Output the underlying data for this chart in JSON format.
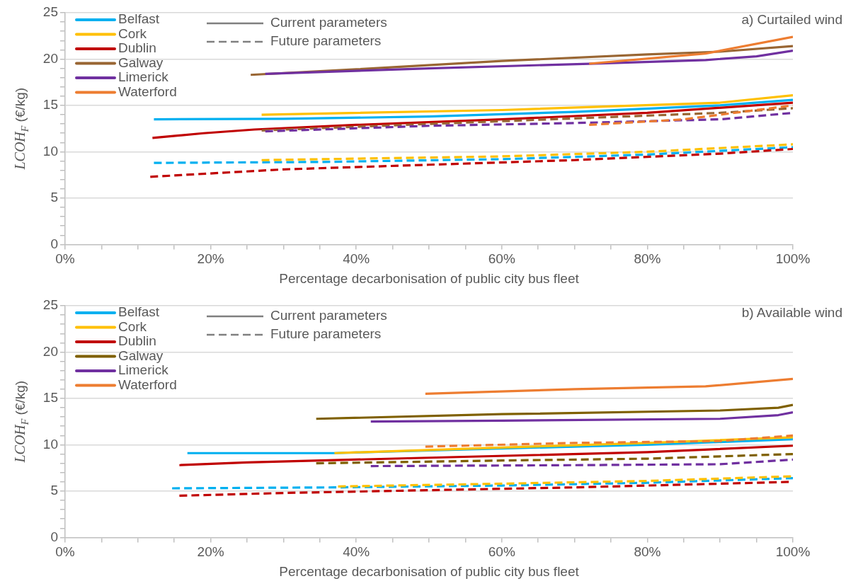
{
  "chart_data": [
    {
      "type": "line",
      "annotations": [
        "Current parameters",
        "Future parameters",
        "a) Curtailed wind"
      ],
      "xlabel": "Percentage decarbonisation of public city bus fleet",
      "ylabel": "LCOH$_{F}$ (€/kg)",
      "legend": "top left",
      "grid": "y",
      "marker": "none",
      "xlim": [
        0,
        100
      ],
      "ylim": [
        0,
        25
      ],
      "xticks": [
        {
          "value": 0,
          "label": "0%"
        },
        {
          "value": 5,
          "label": null
        },
        {
          "value": 10,
          "label": null
        },
        {
          "value": 15,
          "label": null
        },
        {
          "value": 20,
          "label": "20%"
        },
        {
          "value": 25,
          "label": null
        },
        {
          "value": 30,
          "label": null
        },
        {
          "value": 35,
          "label": null
        },
        {
          "value": 40,
          "label": "40%"
        },
        {
          "value": 45,
          "label": null
        },
        {
          "value": 50,
          "label": null
        },
        {
          "value": 55,
          "label": null
        },
        {
          "value": 60,
          "label": "60%"
        },
        {
          "value": 65,
          "label": null
        },
        {
          "value": 70,
          "label": null
        },
        {
          "value": 75,
          "label": null
        },
        {
          "value": 80,
          "label": "80%"
        },
        {
          "value": 85,
          "label": null
        },
        {
          "value": 90,
          "label": null
        },
        {
          "value": 95,
          "label": null
        },
        {
          "value": 100,
          "label": "100%"
        }
      ],
      "yticks": [
        0,
        {
          "value": 1,
          "label": null
        },
        {
          "value": 2,
          "label": null
        },
        {
          "value": 3,
          "label": null
        },
        {
          "value": 4,
          "label": null
        },
        5,
        {
          "value": 6,
          "label": null
        },
        {
          "value": 7,
          "label": null
        },
        {
          "value": 8,
          "label": null
        },
        {
          "value": 9,
          "label": null
        },
        10,
        {
          "value": 11,
          "label": null
        },
        {
          "value": 12,
          "label": null
        },
        {
          "value": 13,
          "label": null
        },
        {
          "value": 14,
          "label": null
        },
        15,
        {
          "value": 16,
          "label": null
        },
        {
          "value": 17,
          "label": null
        },
        {
          "value": 18,
          "label": null
        },
        {
          "value": 19,
          "label": null
        },
        20,
        {
          "value": 21,
          "label": null
        },
        {
          "value": 22,
          "label": null
        },
        {
          "value": 23,
          "label": null
        },
        {
          "value": 24,
          "label": null
        },
        25
      ],
      "series": [
        {
          "name": "Belfast",
          "color": "#00b0f0",
          "line_style": "solid",
          "x": [
            12.2,
            30,
            50,
            70,
            90,
            100
          ],
          "values": [
            13.5,
            13.55,
            13.8,
            14.3,
            15.0,
            15.6
          ]
        },
        {
          "name": "Cork",
          "color": "#ffc000",
          "line_style": "solid",
          "x": [
            27,
            60,
            90,
            100
          ],
          "values": [
            14.0,
            14.5,
            15.3,
            16.1
          ]
        },
        {
          "name": "Dublin",
          "color": "#c00000",
          "line_style": "solid",
          "x": [
            12,
            19,
            26,
            40,
            60,
            80,
            100
          ],
          "values": [
            11.5,
            12.0,
            12.4,
            12.9,
            13.5,
            14.2,
            15.3
          ]
        },
        {
          "name": "Galway",
          "color": "#996633",
          "line_style": "solid",
          "x": [
            25.5,
            40,
            60,
            80,
            90,
            100
          ],
          "values": [
            18.3,
            18.9,
            19.8,
            20.5,
            20.8,
            21.4
          ]
        },
        {
          "name": "Limerick",
          "color": "#7030a0",
          "line_style": "solid",
          "x": [
            27.5,
            50,
            72,
            88,
            95,
            100
          ],
          "values": [
            18.4,
            19.0,
            19.5,
            19.9,
            20.3,
            20.9
          ]
        },
        {
          "name": "Waterford",
          "color": "#ed7d31",
          "line_style": "solid",
          "x": [
            72,
            88,
            100
          ],
          "values": [
            19.5,
            20.6,
            22.4
          ]
        },
        {
          "color": "#00b0f0",
          "line_style": "dashed",
          "x": [
            12.2,
            35,
            60,
            80,
            100
          ],
          "values": [
            8.8,
            8.9,
            9.2,
            9.7,
            10.5
          ]
        },
        {
          "color": "#ffc000",
          "line_style": "dashed",
          "x": [
            27,
            60,
            80,
            100
          ],
          "values": [
            9.1,
            9.5,
            10.0,
            10.8
          ]
        },
        {
          "color": "#c00000",
          "line_style": "dashed",
          "x": [
            11.7,
            30,
            50,
            70,
            90,
            100
          ],
          "values": [
            7.3,
            8.1,
            8.6,
            9.1,
            9.8,
            10.3
          ]
        },
        {
          "color": "#996633",
          "line_style": "dashed",
          "x": [
            27,
            50,
            70,
            90,
            100
          ],
          "values": [
            12.3,
            13.0,
            13.6,
            14.2,
            14.7
          ]
        },
        {
          "color": "#7030a0",
          "line_style": "dashed",
          "x": [
            27.5,
            50,
            70,
            90,
            100
          ],
          "values": [
            12.2,
            12.8,
            13.1,
            13.5,
            14.2
          ]
        },
        {
          "color": "#ed7d31",
          "line_style": "dashed",
          "x": [
            72,
            85,
            100
          ],
          "values": [
            12.9,
            13.5,
            15.0
          ]
        }
      ]
    },
    {
      "type": "line",
      "annotations": [
        "Current parameters",
        "Future parameters",
        "b) Available wind"
      ],
      "xlabel": "Percentage decarbonisation of public city bus fleet",
      "ylabel": "LCOH$_{F}$ (€/kg)",
      "legend": "top left",
      "grid": "y",
      "marker": "none",
      "xlim": [
        0,
        100
      ],
      "ylim": [
        0,
        25
      ],
      "xticks": [
        {
          "value": 0,
          "label": "0%"
        },
        {
          "value": 5,
          "label": null
        },
        {
          "value": 10,
          "label": null
        },
        {
          "value": 15,
          "label": null
        },
        {
          "value": 20,
          "label": "20%"
        },
        {
          "value": 25,
          "label": null
        },
        {
          "value": 30,
          "label": null
        },
        {
          "value": 35,
          "label": null
        },
        {
          "value": 40,
          "label": "40%"
        },
        {
          "value": 45,
          "label": null
        },
        {
          "value": 50,
          "label": null
        },
        {
          "value": 55,
          "label": null
        },
        {
          "value": 60,
          "label": "60%"
        },
        {
          "value": 65,
          "label": null
        },
        {
          "value": 70,
          "label": null
        },
        {
          "value": 75,
          "label": null
        },
        {
          "value": 80,
          "label": "80%"
        },
        {
          "value": 85,
          "label": null
        },
        {
          "value": 90,
          "label": null
        },
        {
          "value": 95,
          "label": null
        },
        {
          "value": 100,
          "label": "100%"
        }
      ],
      "yticks": [
        0,
        {
          "value": 1,
          "label": null
        },
        {
          "value": 2,
          "label": null
        },
        {
          "value": 3,
          "label": null
        },
        {
          "value": 4,
          "label": null
        },
        5,
        {
          "value": 6,
          "label": null
        },
        {
          "value": 7,
          "label": null
        },
        {
          "value": 8,
          "label": null
        },
        {
          "value": 9,
          "label": null
        },
        10,
        {
          "value": 11,
          "label": null
        },
        {
          "value": 12,
          "label": null
        },
        {
          "value": 13,
          "label": null
        },
        {
          "value": 14,
          "label": null
        },
        15,
        {
          "value": 16,
          "label": null
        },
        {
          "value": 17,
          "label": null
        },
        {
          "value": 18,
          "label": null
        },
        {
          "value": 19,
          "label": null
        },
        20,
        {
          "value": 21,
          "label": null
        },
        {
          "value": 22,
          "label": null
        },
        {
          "value": 23,
          "label": null
        },
        {
          "value": 24,
          "label": null
        },
        25
      ],
      "series": [
        {
          "name": "Belfast",
          "color": "#00b0f0",
          "line_style": "solid",
          "x": [
            16.8,
            37,
            60,
            80,
            100
          ],
          "values": [
            9.1,
            9.1,
            9.6,
            10.0,
            10.6
          ]
        },
        {
          "name": "Cork",
          "color": "#ffc000",
          "line_style": "solid",
          "x": [
            37,
            60,
            80,
            100
          ],
          "values": [
            9.1,
            9.7,
            10.2,
            10.8
          ]
        },
        {
          "name": "Dublin",
          "color": "#c00000",
          "line_style": "solid",
          "x": [
            15.7,
            25,
            50,
            80,
            100
          ],
          "values": [
            7.8,
            8.1,
            8.6,
            9.2,
            9.9
          ]
        },
        {
          "name": "Galway",
          "color": "#7f6000",
          "line_style": "solid",
          "x": [
            34.5,
            60,
            90,
            98,
            100
          ],
          "values": [
            12.8,
            13.3,
            13.7,
            14.0,
            14.3
          ]
        },
        {
          "name": "Limerick",
          "color": "#7030a0",
          "line_style": "solid",
          "x": [
            42,
            60,
            90,
            98,
            100
          ],
          "values": [
            12.5,
            12.6,
            12.8,
            13.2,
            13.5
          ]
        },
        {
          "name": "Waterford",
          "color": "#ed7d31",
          "line_style": "solid",
          "x": [
            49.5,
            70,
            88,
            100
          ],
          "values": [
            15.5,
            16.0,
            16.3,
            17.1
          ]
        },
        {
          "color": "#00b0f0",
          "line_style": "dashed",
          "x": [
            14.7,
            37,
            60,
            80,
            100
          ],
          "values": [
            5.3,
            5.4,
            5.6,
            5.9,
            6.4
          ]
        },
        {
          "color": "#ffc000",
          "line_style": "dashed",
          "x": [
            37.5,
            60,
            80,
            100
          ],
          "values": [
            5.5,
            5.8,
            6.1,
            6.6
          ]
        },
        {
          "color": "#c00000",
          "line_style": "dashed",
          "x": [
            15.7,
            30,
            50,
            70,
            90,
            100
          ],
          "values": [
            4.5,
            4.8,
            5.1,
            5.4,
            5.8,
            6.0
          ]
        },
        {
          "color": "#7f6000",
          "line_style": "dashed",
          "x": [
            34.5,
            60,
            80,
            100
          ],
          "values": [
            8.0,
            8.3,
            8.5,
            9.0
          ]
        },
        {
          "color": "#7030a0",
          "line_style": "dashed",
          "x": [
            42,
            70,
            90,
            100
          ],
          "values": [
            7.7,
            7.8,
            7.9,
            8.4
          ]
        },
        {
          "color": "#ed7d31",
          "line_style": "dashed",
          "x": [
            49.5,
            70,
            90,
            100
          ],
          "values": [
            9.8,
            10.2,
            10.4,
            11.0
          ]
        }
      ]
    }
  ]
}
